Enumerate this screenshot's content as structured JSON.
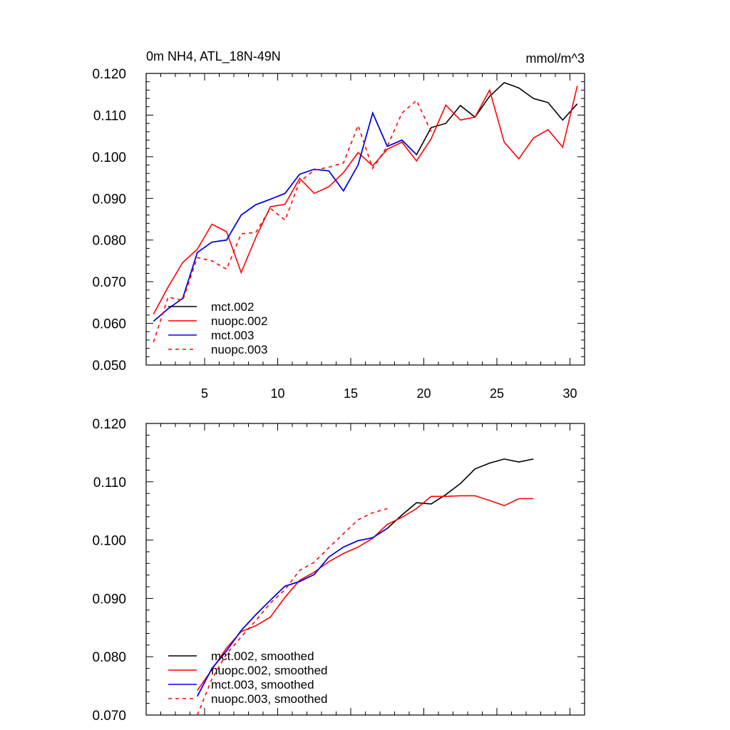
{
  "colors": {
    "mct_002": "#000000",
    "nuopc_002": "#ff0000",
    "mct_003": "#0000ff",
    "nuopc_003": "#ff0000",
    "axis": "#000000",
    "background": "#ffffff"
  },
  "chart_data": [
    {
      "type": "line",
      "title_left": "0m NH4, ATL_18N-49N",
      "title_right": "mmol/m^3",
      "xlabel": "",
      "ylabel": "",
      "xlim": [
        1,
        31
      ],
      "ylim": [
        0.05,
        0.12
      ],
      "xticks": [
        5,
        10,
        15,
        20,
        25,
        30
      ],
      "xtick_labels": [
        "5",
        "10",
        "15",
        "20",
        "25",
        "30"
      ],
      "yticks": [
        0.05,
        0.06,
        0.07,
        0.08,
        0.09,
        0.1,
        0.11,
        0.12
      ],
      "ytick_labels": [
        "0.050",
        "0.060",
        "0.070",
        "0.080",
        "0.090",
        "0.100",
        "0.110",
        "0.120"
      ],
      "legend_position": "bottom-left",
      "series": [
        {
          "name": "mct.002",
          "style": "solid",
          "color_key": "mct_002",
          "x": [
            1.5,
            2.5,
            3.5,
            4.5,
            5.5,
            6.5,
            7.5,
            8.5,
            9.5,
            10.5,
            11.5,
            12.5,
            13.5,
            14.5,
            15.5,
            16.5,
            17.5,
            18.5,
            19.5,
            20.5,
            21.5,
            22.5,
            23.5,
            24.5,
            25.5,
            26.5,
            27.5,
            28.5,
            29.5,
            30.5
          ],
          "y": [
            0.0605,
            0.0635,
            0.066,
            0.077,
            0.0795,
            0.08,
            0.086,
            0.0885,
            0.0898,
            0.0912,
            0.0958,
            0.097,
            0.0966,
            0.0918,
            0.098,
            0.1105,
            0.1025,
            0.104,
            0.1005,
            0.107,
            0.108,
            0.1123,
            0.1095,
            0.1145,
            0.1178,
            0.1165,
            0.114,
            0.113,
            0.1088,
            0.1127
          ]
        },
        {
          "name": "nuopc.002",
          "style": "solid",
          "color_key": "nuopc_002",
          "x": [
            1.5,
            2.5,
            3.5,
            4.5,
            5.5,
            6.5,
            7.5,
            8.5,
            9.5,
            10.5,
            11.5,
            12.5,
            13.5,
            14.5,
            15.5,
            16.5,
            17.5,
            18.5,
            19.5,
            20.5,
            21.5,
            22.5,
            23.5,
            24.5,
            25.5,
            26.5,
            27.5,
            28.5,
            29.5,
            30.5
          ],
          "y": [
            0.0622,
            0.0687,
            0.0746,
            0.0778,
            0.0838,
            0.082,
            0.0722,
            0.0806,
            0.088,
            0.0886,
            0.0948,
            0.0912,
            0.0928,
            0.0962,
            0.101,
            0.0978,
            0.1018,
            0.1035,
            0.099,
            0.1043,
            0.1124,
            0.1088,
            0.1095,
            0.116,
            0.1035,
            0.0995,
            0.1045,
            0.1065,
            0.1023,
            0.117
          ]
        },
        {
          "name": "mct.003",
          "style": "solid",
          "color_key": "mct_003",
          "x": [
            1.5,
            2.5,
            3.5,
            4.5,
            5.5,
            6.5,
            7.5,
            8.5,
            9.5,
            10.5,
            11.5,
            12.5,
            13.5,
            14.5,
            15.5,
            16.5,
            17.5,
            18.5,
            19.5
          ],
          "y": [
            0.0605,
            0.0635,
            0.066,
            0.077,
            0.0795,
            0.08,
            0.086,
            0.0885,
            0.0898,
            0.0912,
            0.0958,
            0.097,
            0.0966,
            0.0918,
            0.098,
            0.1105,
            0.1025,
            0.104,
            0.1005
          ]
        },
        {
          "name": "nuopc.003",
          "style": "dashed",
          "color_key": "nuopc_003",
          "x": [
            1.5,
            2.5,
            3.5,
            4.5,
            5.5,
            6.5,
            7.5,
            8.5,
            9.5,
            10.5,
            11.5,
            12.5,
            13.5,
            14.5,
            15.5,
            16.5,
            17.5,
            18.5,
            19.5,
            20.5
          ],
          "y": [
            0.0555,
            0.0663,
            0.0655,
            0.0758,
            0.075,
            0.073,
            0.0815,
            0.0818,
            0.0876,
            0.0848,
            0.094,
            0.0968,
            0.0975,
            0.0985,
            0.1075,
            0.0972,
            0.1025,
            0.1105,
            0.1135,
            0.106
          ]
        }
      ]
    },
    {
      "type": "line",
      "xlabel": "",
      "ylabel": "",
      "xlim": [
        1,
        31
      ],
      "ylim": [
        0.07,
        0.12
      ],
      "xticks": [
        5,
        10,
        15,
        20,
        25,
        30
      ],
      "yticks": [
        0.07,
        0.08,
        0.09,
        0.1,
        0.11,
        0.12
      ],
      "ytick_labels": [
        "0.070",
        "0.080",
        "0.090",
        "0.100",
        "0.110",
        "0.120"
      ],
      "legend_position": "bottom-left",
      "series": [
        {
          "name": "mct.002, smoothed",
          "style": "solid",
          "color_key": "mct_002",
          "x": [
            4.5,
            5.5,
            6.5,
            7.5,
            8.5,
            9.5,
            10.5,
            11.5,
            12.5,
            13.5,
            14.5,
            15.5,
            16.5,
            17.5,
            18.5,
            19.5,
            20.5,
            21.5,
            22.5,
            23.5,
            24.5,
            25.5,
            26.5,
            27.5
          ],
          "y": [
            0.0732,
            0.078,
            0.081,
            0.0845,
            0.0872,
            0.0897,
            0.0921,
            0.0929,
            0.0941,
            0.0971,
            0.0988,
            0.0999,
            0.1004,
            0.102,
            0.1043,
            0.1064,
            0.1062,
            0.1078,
            0.1097,
            0.1122,
            0.1132,
            0.1139,
            0.1134,
            0.1139
          ]
        },
        {
          "name": "nuopc.002, smoothed",
          "style": "solid",
          "color_key": "nuopc_002",
          "x": [
            4.5,
            5.5,
            6.5,
            7.5,
            8.5,
            9.5,
            10.5,
            11.5,
            12.5,
            13.5,
            14.5,
            15.5,
            16.5,
            17.5,
            18.5,
            19.5,
            20.5,
            21.5,
            22.5,
            23.5,
            24.5,
            25.5,
            26.5,
            27.5
          ],
          "y": [
            0.0742,
            0.0778,
            0.0815,
            0.0843,
            0.0853,
            0.0868,
            0.0902,
            0.0931,
            0.0945,
            0.0963,
            0.0977,
            0.0988,
            0.1003,
            0.1027,
            0.1039,
            0.1054,
            0.1075,
            0.1075,
            0.1076,
            0.1076,
            0.1068,
            0.1059,
            0.1071,
            0.1071
          ]
        },
        {
          "name": "mct.003, smoothed",
          "style": "solid",
          "color_key": "mct_003",
          "x": [
            4.5,
            5.5,
            6.5,
            7.5,
            8.5,
            9.5,
            10.5,
            11.5,
            12.5,
            13.5,
            14.5,
            15.5,
            16.5,
            17.5
          ],
          "y": [
            0.0732,
            0.078,
            0.081,
            0.0845,
            0.0872,
            0.0897,
            0.0921,
            0.0929,
            0.0941,
            0.0971,
            0.0988,
            0.0999,
            0.1004,
            0.102
          ]
        },
        {
          "name": "nuopc.003, smoothed",
          "style": "dashed",
          "color_key": "nuopc_003",
          "x": [
            4.5,
            5.5,
            6.5,
            7.5,
            8.5,
            9.5,
            10.5,
            11.5,
            12.5,
            13.5,
            14.5,
            15.5,
            16.5,
            17.5
          ],
          "y": [
            0.07,
            0.0762,
            0.0805,
            0.0834,
            0.0862,
            0.0892,
            0.0915,
            0.0948,
            0.0962,
            0.0987,
            0.1011,
            0.1035,
            0.1047,
            0.1054
          ]
        }
      ]
    }
  ]
}
